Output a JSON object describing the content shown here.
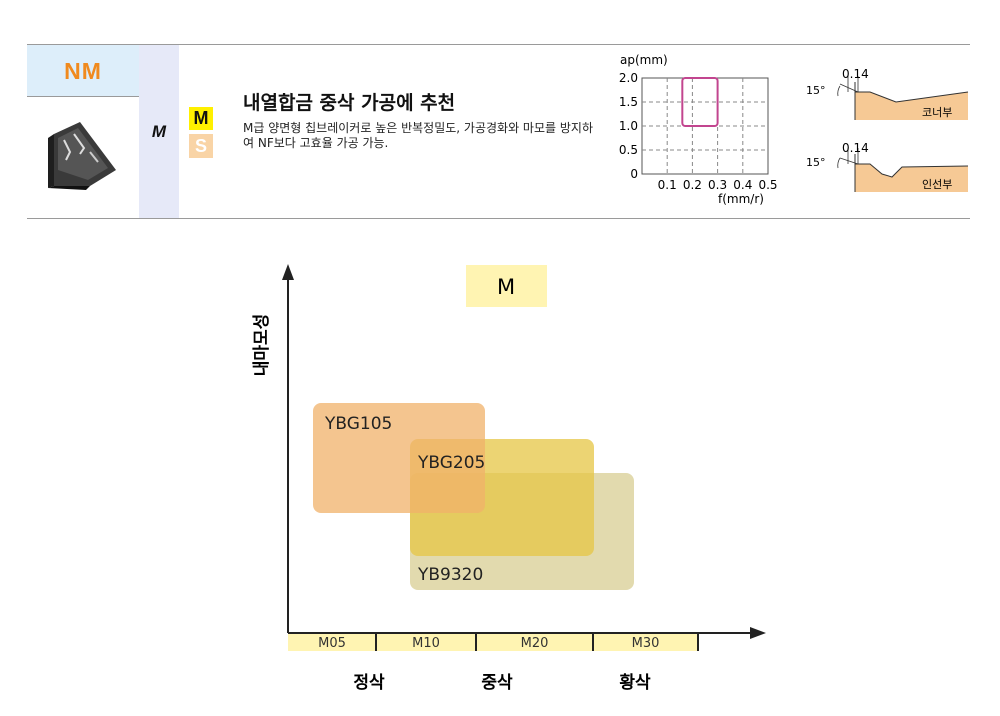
{
  "info": {
    "chipbreaker_code": "NM",
    "iso_group": "M",
    "tags": [
      "M",
      "S"
    ],
    "title": "내열합금 중삭 가공에 추천",
    "description": "M급 양면형 칩브레이커로 높은 반복정밀도, 가공경화와 마모를 방지하여 NF보다 고효율 가공 가능.",
    "ap_chart": {
      "type": "area",
      "ylabel": "ap(mm)",
      "xlabel": "f(mm/r)",
      "y_ticks": [
        "2.0",
        "1.5",
        "1.0",
        "0.5",
        "0"
      ],
      "x_ticks": [
        "0.1",
        "0.2",
        "0.3",
        "0.4",
        "0.5"
      ],
      "region": {
        "f_min": 0.16,
        "f_max": 0.3,
        "ap_min": 1.0,
        "ap_max": 2.0
      },
      "color": "#c2458f"
    },
    "profiles": [
      {
        "angle": "15°",
        "land": "0.14",
        "label": "코너부"
      },
      {
        "angle": "15°",
        "land": "0.14",
        "label": "인선부"
      }
    ]
  },
  "chart_data": {
    "type": "area",
    "title": "M",
    "ylabel": "내마모성",
    "x_categories": [
      "M05",
      "M10",
      "M20",
      "M30"
    ],
    "x_groups": [
      "정삭",
      "중삭",
      "황삭"
    ],
    "series": [
      {
        "name": "YBG105",
        "x_range": [
          "M05",
          "M10"
        ],
        "color": "#f0b26a"
      },
      {
        "name": "YBG205",
        "x_range": [
          "M10",
          "M20"
        ],
        "color": "#e6c544"
      },
      {
        "name": "YB9320",
        "x_range": [
          "M10",
          "M30"
        ],
        "color": "#ddd4a0"
      }
    ],
    "colors": {
      "title_bg": "#fff4b2",
      "axis_band": "#fff4b2"
    }
  }
}
